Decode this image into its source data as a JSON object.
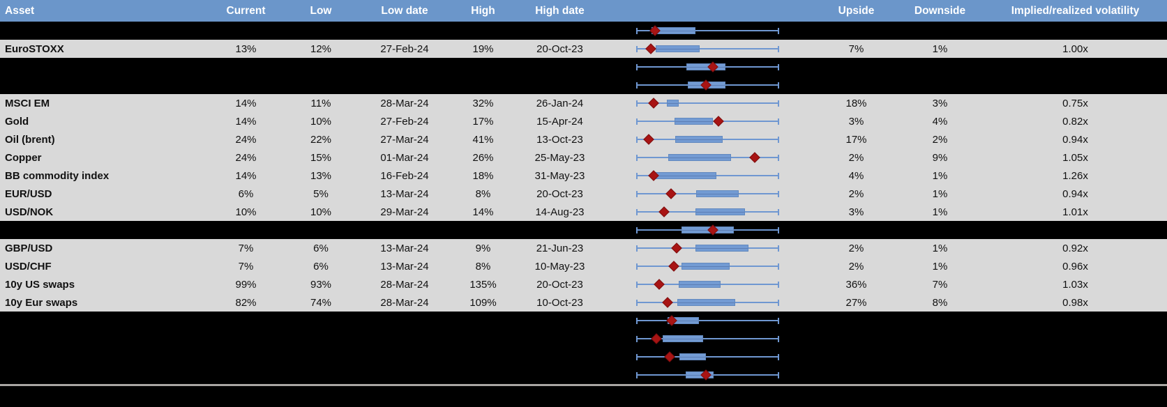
{
  "table": {
    "columns": [
      "Asset",
      "Current",
      "Low",
      "Low date",
      "High",
      "High date",
      "Upside",
      "Downside",
      "Implied/realized volatility"
    ],
    "rows": [
      {
        "type": "hidden"
      },
      {
        "type": "data",
        "asset": "EuroSTOXX",
        "current": "13%",
        "low": "12%",
        "low_date": "27-Feb-24",
        "high": "19%",
        "high_date": "20-Oct-23",
        "upside": "7%",
        "downside": "1%",
        "impl_real": "1.00x"
      },
      {
        "type": "hidden"
      },
      {
        "type": "hidden"
      },
      {
        "type": "data",
        "asset": "MSCI EM",
        "current": "14%",
        "low": "11%",
        "low_date": "28-Mar-24",
        "high": "32%",
        "high_date": "26-Jan-24",
        "upside": "18%",
        "downside": "3%",
        "impl_real": "0.75x"
      },
      {
        "type": "data",
        "asset": "Gold",
        "current": "14%",
        "low": "10%",
        "low_date": "27-Feb-24",
        "high": "17%",
        "high_date": "15-Apr-24",
        "upside": "3%",
        "downside": "4%",
        "impl_real": "0.82x"
      },
      {
        "type": "data",
        "asset": "Oil (brent)",
        "current": "24%",
        "low": "22%",
        "low_date": "27-Mar-24",
        "high": "41%",
        "high_date": "13-Oct-23",
        "upside": "17%",
        "downside": "2%",
        "impl_real": "0.94x"
      },
      {
        "type": "data",
        "asset": "Copper",
        "current": "24%",
        "low": "15%",
        "low_date": "01-Mar-24",
        "high": "26%",
        "high_date": "25-May-23",
        "upside": "2%",
        "downside": "9%",
        "impl_real": "1.05x"
      },
      {
        "type": "data",
        "asset": "BB commodity index",
        "current": "14%",
        "low": "13%",
        "low_date": "16-Feb-24",
        "high": "18%",
        "high_date": "31-May-23",
        "upside": "4%",
        "downside": "1%",
        "impl_real": "1.26x"
      },
      {
        "type": "data",
        "asset": "EUR/USD",
        "current": "6%",
        "low": "5%",
        "low_date": "13-Mar-24",
        "high": "8%",
        "high_date": "20-Oct-23",
        "upside": "2%",
        "downside": "1%",
        "impl_real": "0.94x"
      },
      {
        "type": "data",
        "asset": "USD/NOK",
        "current": "10%",
        "low": "10%",
        "low_date": "29-Mar-24",
        "high": "14%",
        "high_date": "14-Aug-23",
        "upside": "3%",
        "downside": "1%",
        "impl_real": "1.01x"
      },
      {
        "type": "hidden"
      },
      {
        "type": "data",
        "asset": "GBP/USD",
        "current": "7%",
        "low": "6%",
        "low_date": "13-Mar-24",
        "high": "9%",
        "high_date": "21-Jun-23",
        "upside": "2%",
        "downside": "1%",
        "impl_real": "0.92x"
      },
      {
        "type": "data",
        "asset": "USD/CHF",
        "current": "7%",
        "low": "6%",
        "low_date": "13-Mar-24",
        "high": "8%",
        "high_date": "10-May-23",
        "upside": "2%",
        "downside": "1%",
        "impl_real": "0.96x"
      },
      {
        "type": "data",
        "asset": "10y US swaps",
        "current": "99%",
        "low": "93%",
        "low_date": "28-Mar-24",
        "high": "135%",
        "high_date": "20-Oct-23",
        "upside": "36%",
        "downside": "7%",
        "impl_real": "1.03x"
      },
      {
        "type": "data",
        "asset": "10y Eur swaps",
        "current": "82%",
        "low": "74%",
        "low_date": "28-Mar-24",
        "high": "109%",
        "high_date": "10-Oct-23",
        "upside": "27%",
        "downside": "8%",
        "impl_real": "0.98x"
      },
      {
        "type": "hidden"
      },
      {
        "type": "hidden"
      },
      {
        "type": "hidden"
      },
      {
        "type": "hidden"
      }
    ]
  },
  "chart_data": {
    "type": "boxplot",
    "orientation": "horizontal",
    "note": "One box-and-whisker per table row; positions are % of plot width. Whiskers span the full 0-100 range on every row. Red diamond = current level marker.",
    "legend": {
      "box": "range",
      "diamond_marker": "current"
    },
    "series": [
      {
        "label": "(hidden row 1)",
        "box_lo": 10.7,
        "box_hi": 41.5,
        "marker": 13.2
      },
      {
        "label": "EuroSTOXX",
        "box_lo": 13.7,
        "box_hi": 44.4,
        "marker": 10.2
      },
      {
        "label": "(hidden row 2)",
        "box_lo": 35.0,
        "box_hi": 62.6,
        "marker": 53.9
      },
      {
        "label": "(hidden row 3)",
        "box_lo": 35.9,
        "box_hi": 62.6,
        "marker": 49.0
      },
      {
        "label": "MSCI EM",
        "box_lo": 21.5,
        "box_hi": 29.8,
        "marker": 12.1
      },
      {
        "label": "Gold",
        "box_lo": 26.7,
        "box_hi": 53.6,
        "marker": 57.6
      },
      {
        "label": "Oil (brent)",
        "box_lo": 27.1,
        "box_hi": 60.5,
        "marker": 8.8
      },
      {
        "label": "Copper",
        "box_lo": 22.2,
        "box_hi": 66.2,
        "marker": 82.7
      },
      {
        "label": "BB commodity index",
        "box_lo": 12.1,
        "box_hi": 55.9,
        "marker": 12.4
      },
      {
        "label": "EUR/USD",
        "box_lo": 42.0,
        "box_hi": 71.7,
        "marker": 24.2
      },
      {
        "label": "USD/NOK",
        "box_lo": 41.7,
        "box_hi": 76.1,
        "marker": 19.5
      },
      {
        "label": "(hidden row 4)",
        "box_lo": 31.7,
        "box_hi": 68.3,
        "marker": 53.7
      },
      {
        "label": "GBP/USD",
        "box_lo": 41.5,
        "box_hi": 78.5,
        "marker": 28.3
      },
      {
        "label": "USD/CHF",
        "box_lo": 31.7,
        "box_hi": 65.4,
        "marker": 26.3
      },
      {
        "label": "10y US swaps",
        "box_lo": 29.8,
        "box_hi": 59.0,
        "marker": 16.1
      },
      {
        "label": "10y Eur swaps",
        "box_lo": 28.8,
        "box_hi": 69.3,
        "marker": 22.0
      },
      {
        "label": "(hidden row 5)",
        "box_lo": 22.0,
        "box_hi": 44.0,
        "marker": 25.0
      },
      {
        "label": "(hidden row 6)",
        "box_lo": 18.5,
        "box_hi": 47.0,
        "marker": 14.0
      },
      {
        "label": "(hidden row 7)",
        "box_lo": 30.0,
        "box_hi": 49.0,
        "marker": 23.4
      },
      {
        "label": "(hidden row 8)",
        "box_lo": 34.7,
        "box_hi": 54.0,
        "marker": 48.7
      }
    ]
  },
  "colors": {
    "header_blue": "#6b96ca",
    "row_gray": "#d9d9d9",
    "hidden_black": "#000000",
    "box_fill": "#739bd3",
    "whisker_blue": "#6f97d1",
    "marker_red": "#a81414",
    "separator_gray": "#a9a6a3",
    "header_text": "#ffffff",
    "body_text": "#111111"
  }
}
